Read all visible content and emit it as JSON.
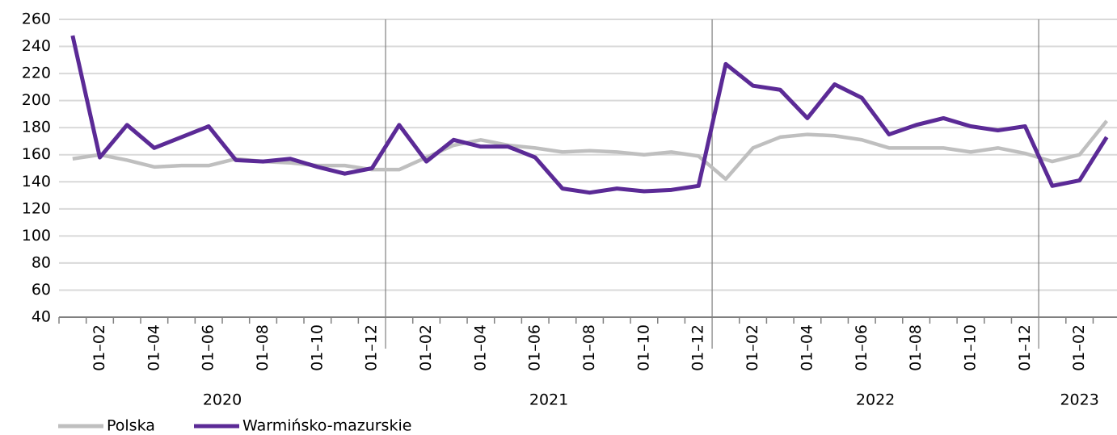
{
  "chart_data": {
    "type": "line",
    "categories": [
      null,
      "01–02",
      null,
      "01–04",
      null,
      "01–06",
      null,
      "01–08",
      null,
      "01–10",
      null,
      "01–12",
      null,
      "01–02",
      null,
      "01–04",
      null,
      "01–06",
      null,
      "01–08",
      null,
      "01–10",
      null,
      "01–12",
      null,
      "01–02",
      null,
      "01–04",
      null,
      "01–06",
      null,
      "01–08",
      null,
      "01–10",
      null,
      "01–12",
      null,
      "01–02",
      null
    ],
    "year_groups": [
      "2020",
      "2021",
      "2022",
      "2023"
    ],
    "series": [
      {
        "name": "Polska",
        "color": "#bfbfbf",
        "values": [
          157,
          160,
          156,
          151,
          152,
          152,
          157,
          155,
          154,
          152,
          152,
          149,
          149,
          158,
          167,
          171,
          167,
          165,
          162,
          163,
          162,
          160,
          162,
          159,
          142,
          165,
          173,
          175,
          174,
          171,
          165,
          165,
          165,
          162,
          165,
          161,
          155,
          160,
          185
        ]
      },
      {
        "name": "Warmińsko-mazurskie",
        "color": "#5b2a96",
        "values": [
          248,
          158,
          182,
          165,
          173,
          181,
          156,
          155,
          157,
          151,
          146,
          150,
          182,
          155,
          171,
          166,
          166,
          158,
          135,
          132,
          135,
          133,
          134,
          137,
          227,
          211,
          208,
          187,
          212,
          202,
          175,
          182,
          187,
          181,
          178,
          181,
          137,
          141,
          173
        ]
      }
    ],
    "ylim": [
      40,
      260
    ],
    "yticks": [
      40,
      60,
      80,
      100,
      120,
      140,
      160,
      180,
      200,
      220,
      240,
      260
    ],
    "grid": true
  }
}
